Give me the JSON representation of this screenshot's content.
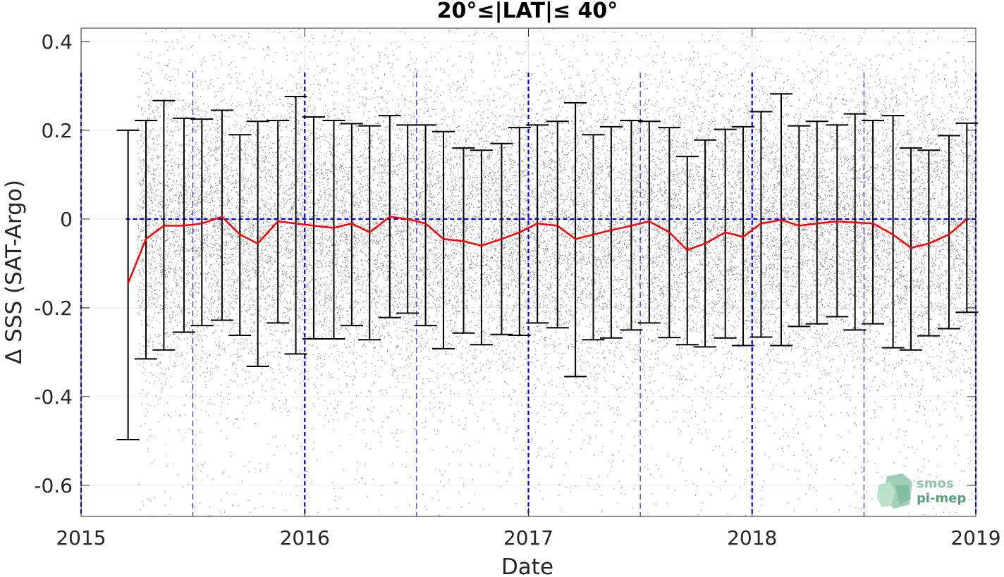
{
  "chart_data": {
    "type": "scatter",
    "title": "20°≤|LAT|≤ 40°",
    "xlabel": "Date",
    "ylabel": "Δ SSS (SAT-Argo)",
    "xlim": [
      2015.0,
      2019.0
    ],
    "ylim": [
      -0.67,
      0.43
    ],
    "x_ticks": [
      2015,
      2016,
      2017,
      2018,
      2019
    ],
    "x_tick_labels": [
      "2015",
      "2016",
      "2017",
      "2018",
      "2019"
    ],
    "y_ticks": [
      -0.6,
      -0.4,
      -0.2,
      0,
      0.2,
      0.4
    ],
    "y_tick_labels": [
      "-0.6",
      "-0.4",
      "-0.2",
      "0",
      "0.2",
      "0.4"
    ],
    "grid": true,
    "colors": {
      "scatter": "#8c8c8c",
      "mean_line": "#ff0000",
      "error_bars": "#000000",
      "reference_lines": "#0000ff"
    },
    "scatter_x_range": [
      2015.25,
      2019.0
    ],
    "year_reference_x": [
      2015,
      2016,
      2017,
      2018,
      2019
    ],
    "half_year_reference_x": [
      2015.5,
      2016.5,
      2017.5,
      2018.5
    ],
    "zero_reference_x_range": [
      2015.2,
      2019.0
    ],
    "series": [
      {
        "x": [
          2015.21,
          2015.29,
          2015.37,
          2015.46,
          2015.54,
          2015.63,
          2015.71,
          2015.79,
          2015.88,
          2015.96,
          2016.04,
          2016.13,
          2016.21,
          2016.29,
          2016.38,
          2016.46,
          2016.54,
          2016.62,
          2016.71,
          2016.79,
          2016.88,
          2016.96,
          2017.04,
          2017.13,
          2017.21,
          2017.29,
          2017.37,
          2017.46,
          2017.54,
          2017.63,
          2017.71,
          2017.79,
          2017.88,
          2017.96,
          2018.04,
          2018.13,
          2018.21,
          2018.29,
          2018.38,
          2018.46,
          2018.54,
          2018.63,
          2018.71,
          2018.79,
          2018.88,
          2018.96
        ],
        "mean": [
          -0.145,
          -0.045,
          -0.015,
          -0.015,
          -0.01,
          0.005,
          -0.035,
          -0.055,
          -0.005,
          -0.01,
          -0.015,
          -0.02,
          -0.01,
          -0.03,
          0.005,
          0.0,
          -0.01,
          -0.045,
          -0.05,
          -0.06,
          -0.045,
          -0.03,
          -0.01,
          -0.015,
          -0.045,
          -0.035,
          -0.025,
          -0.015,
          -0.005,
          -0.03,
          -0.07,
          -0.055,
          -0.03,
          -0.04,
          -0.01,
          -0.002,
          -0.015,
          -0.01,
          -0.005,
          -0.008,
          -0.01,
          -0.035,
          -0.065,
          -0.055,
          -0.035,
          0.0
        ],
        "upper": [
          0.2,
          0.222,
          0.267,
          0.227,
          0.225,
          0.245,
          0.19,
          0.22,
          0.222,
          0.276,
          0.23,
          0.222,
          0.215,
          0.21,
          0.233,
          0.212,
          0.212,
          0.197,
          0.16,
          0.155,
          0.17,
          0.206,
          0.212,
          0.22,
          0.262,
          0.19,
          0.208,
          0.222,
          0.22,
          0.206,
          0.141,
          0.178,
          0.202,
          0.208,
          0.242,
          0.282,
          0.21,
          0.22,
          0.212,
          0.237,
          0.222,
          0.233,
          0.16,
          0.155,
          0.188,
          0.216
        ],
        "lower": [
          -0.497,
          -0.315,
          -0.295,
          -0.255,
          -0.24,
          -0.228,
          -0.262,
          -0.332,
          -0.234,
          -0.304,
          -0.27,
          -0.27,
          -0.24,
          -0.272,
          -0.222,
          -0.212,
          -0.24,
          -0.292,
          -0.257,
          -0.283,
          -0.26,
          -0.262,
          -0.234,
          -0.245,
          -0.355,
          -0.272,
          -0.268,
          -0.25,
          -0.234,
          -0.267,
          -0.283,
          -0.288,
          -0.268,
          -0.285,
          -0.266,
          -0.285,
          -0.242,
          -0.236,
          -0.22,
          -0.25,
          -0.236,
          -0.29,
          -0.295,
          -0.263,
          -0.247,
          -0.21
        ]
      }
    ]
  },
  "logo": {
    "line1": "smos",
    "line2": "pi-mep"
  }
}
